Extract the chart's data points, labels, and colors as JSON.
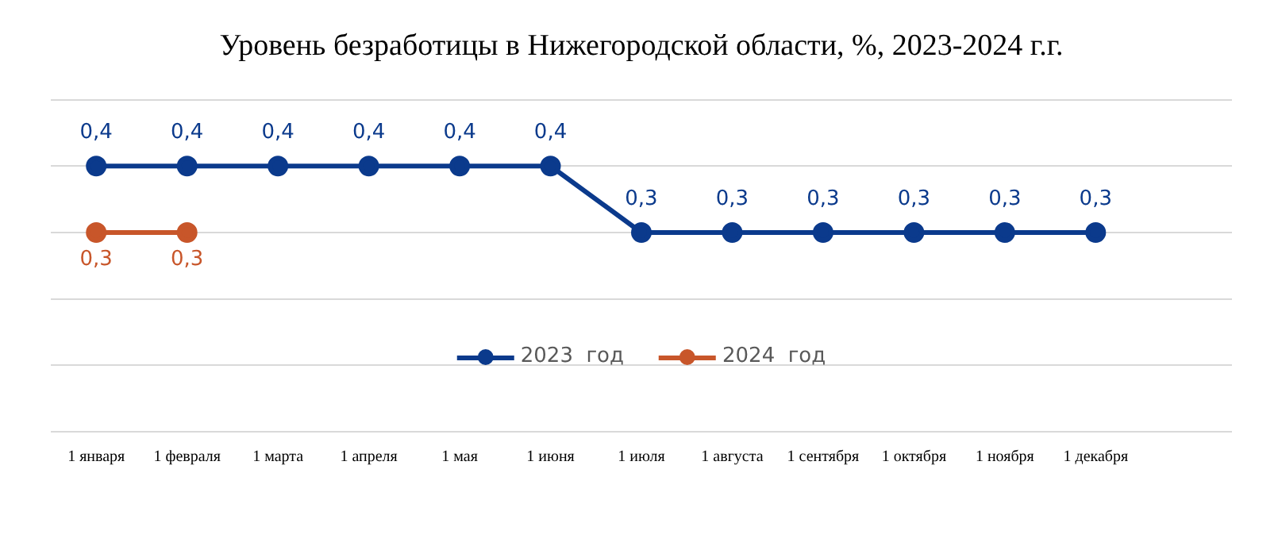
{
  "chart_data": {
    "type": "line",
    "title": "Уровень безработицы в Нижегородской области, %, 2023-2024 г.г.",
    "categories": [
      "1 января",
      "1 февраля",
      "1 марта",
      "1 апреля",
      "1 мая",
      "1 июня",
      "1 июля",
      "1 августа",
      "1 сентября",
      "1 октября",
      "1 ноября",
      "1 декабря",
      null
    ],
    "series": [
      {
        "name": "2023  год",
        "color": "#0b3a8c",
        "values": [
          0.4,
          0.4,
          0.4,
          0.4,
          0.4,
          0.4,
          0.3,
          0.3,
          0.3,
          0.3,
          0.3,
          0.3,
          null
        ],
        "value_labels": [
          "0,4",
          "0,4",
          "0,4",
          "0,4",
          "0,4",
          "0,4",
          "0,3",
          "0,3",
          "0,3",
          "0,3",
          "0,3",
          "0,3",
          null
        ]
      },
      {
        "name": "2024  год",
        "color": "#c8562a",
        "values": [
          0.3,
          0.3,
          null,
          null,
          null,
          null,
          null,
          null,
          null,
          null,
          null,
          null,
          null
        ],
        "value_labels": [
          "0,3",
          "0,3",
          null,
          null,
          null,
          null,
          null,
          null,
          null,
          null,
          null,
          null,
          null
        ]
      }
    ],
    "ylim": [
      0,
      0.5
    ],
    "yticks": [
      0,
      0.1,
      0.2,
      0.3,
      0.4,
      0.5
    ],
    "tick_labels": "x",
    "grid": "y",
    "legend": "bottom",
    "marker": "circle",
    "line_style": "solid"
  }
}
